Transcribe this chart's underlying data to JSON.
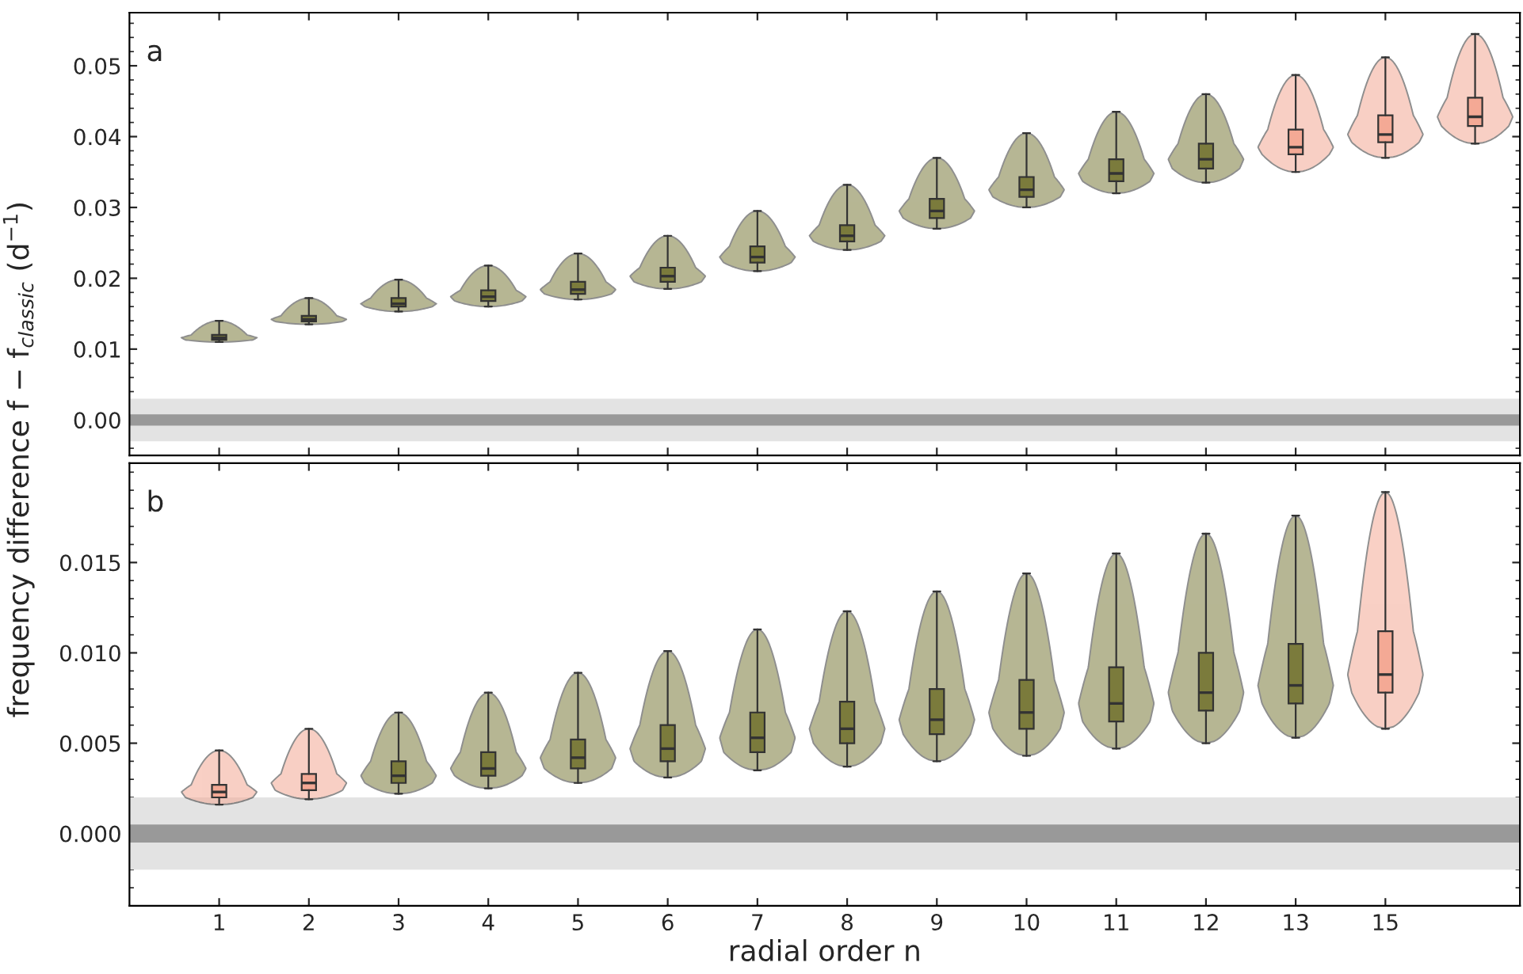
{
  "chart_data": [
    {
      "type": "box",
      "ylabel": "frequency difference f − f$_{classic}$ (d$^{−1}$)",
      "annotations": [
        "a"
      ],
      "categories": [
        "1",
        "2",
        "3",
        "4",
        "5",
        "6",
        "7",
        "8",
        "9",
        "10",
        "11",
        "12",
        "13",
        "15",
        null
      ],
      "colors": [
        "#7b7b3c",
        "#7b7b3c",
        "#7b7b3c",
        "#7b7b3c",
        "#7b7b3c",
        "#7b7b3c",
        "#7b7b3c",
        "#7b7b3c",
        "#7b7b3c",
        "#7b7b3c",
        "#7b7b3c",
        "#7b7b3c",
        "#f4a995",
        "#f4a995",
        "#f4a995"
      ],
      "boxes": [
        {
          "low": 0.011,
          "q1": 0.0113,
          "median": 0.0116,
          "q3": 0.012,
          "high": 0.014
        },
        {
          "low": 0.0135,
          "q1": 0.0139,
          "median": 0.0142,
          "q3": 0.0147,
          "high": 0.0172
        },
        {
          "low": 0.0153,
          "q1": 0.016,
          "median": 0.0164,
          "q3": 0.0172,
          "high": 0.0198
        },
        {
          "low": 0.016,
          "q1": 0.0168,
          "median": 0.0174,
          "q3": 0.0183,
          "high": 0.0218
        },
        {
          "low": 0.017,
          "q1": 0.0178,
          "median": 0.0184,
          "q3": 0.0195,
          "high": 0.0235
        },
        {
          "low": 0.0185,
          "q1": 0.0195,
          "median": 0.0203,
          "q3": 0.0215,
          "high": 0.026
        },
        {
          "low": 0.021,
          "q1": 0.0222,
          "median": 0.023,
          "q3": 0.0245,
          "high": 0.0295
        },
        {
          "low": 0.024,
          "q1": 0.0252,
          "median": 0.026,
          "q3": 0.0275,
          "high": 0.0332
        },
        {
          "low": 0.027,
          "q1": 0.0285,
          "median": 0.0295,
          "q3": 0.0312,
          "high": 0.037
        },
        {
          "low": 0.03,
          "q1": 0.0315,
          "median": 0.0325,
          "q3": 0.0343,
          "high": 0.0405
        },
        {
          "low": 0.032,
          "q1": 0.0337,
          "median": 0.0348,
          "q3": 0.0368,
          "high": 0.0435
        },
        {
          "low": 0.0335,
          "q1": 0.0355,
          "median": 0.0368,
          "q3": 0.039,
          "high": 0.046
        },
        {
          "low": 0.035,
          "q1": 0.0375,
          "median": 0.0385,
          "q3": 0.041,
          "high": 0.0487
        },
        {
          "low": 0.037,
          "q1": 0.0392,
          "median": 0.0403,
          "q3": 0.043,
          "high": 0.0512
        },
        {
          "low": 0.039,
          "q1": 0.0415,
          "median": 0.0428,
          "q3": 0.0455,
          "high": 0.0545
        }
      ],
      "ylim": [
        -0.005,
        0.0575
      ],
      "yticks": [
        {
          "value": 0,
          "label": "0.00"
        },
        {
          "value": 0.01,
          "label": "0.01"
        },
        {
          "value": 0.02,
          "label": "0.02"
        },
        {
          "value": 0.03,
          "label": "0.03"
        },
        {
          "value": 0.04,
          "label": "0.04"
        },
        {
          "value": 0.05,
          "label": "0.05"
        }
      ],
      "bands": [
        {
          "axis": "y",
          "from": -0.003,
          "to": 0.003,
          "color": "#e3e3e3"
        },
        {
          "axis": "y",
          "from": -0.0008,
          "to": 0.0008,
          "color": "#999999"
        }
      ],
      "tick_labels": "y"
    },
    {
      "type": "box",
      "xlabel": "radial order n",
      "annotations": [
        "b"
      ],
      "categories": [
        "1",
        "2",
        "3",
        "4",
        "5",
        "6",
        "7",
        "8",
        "9",
        "10",
        "11",
        "12",
        "13",
        "15",
        null
      ],
      "colors": [
        "#f4a995",
        "#f4a995",
        "#7b7b3c",
        "#7b7b3c",
        "#7b7b3c",
        "#7b7b3c",
        "#7b7b3c",
        "#7b7b3c",
        "#7b7b3c",
        "#7b7b3c",
        "#7b7b3c",
        "#7b7b3c",
        "#7b7b3c",
        "#f4a995",
        "#f4a995"
      ],
      "boxes": [
        {
          "low": 0.0016,
          "q1": 0.002,
          "median": 0.0023,
          "q3": 0.0027,
          "high": 0.0046
        },
        {
          "low": 0.0019,
          "q1": 0.0024,
          "median": 0.0028,
          "q3": 0.0033,
          "high": 0.0058
        },
        {
          "low": 0.0022,
          "q1": 0.0028,
          "median": 0.0032,
          "q3": 0.004,
          "high": 0.0067
        },
        {
          "low": 0.0025,
          "q1": 0.0032,
          "median": 0.0036,
          "q3": 0.0045,
          "high": 0.0078
        },
        {
          "low": 0.0028,
          "q1": 0.0036,
          "median": 0.0042,
          "q3": 0.0052,
          "high": 0.0089
        },
        {
          "low": 0.0031,
          "q1": 0.004,
          "median": 0.0047,
          "q3": 0.006,
          "high": 0.0101
        },
        {
          "low": 0.0035,
          "q1": 0.0045,
          "median": 0.0053,
          "q3": 0.0067,
          "high": 0.0113
        },
        {
          "low": 0.0037,
          "q1": 0.005,
          "median": 0.0058,
          "q3": 0.0073,
          "high": 0.0123
        },
        {
          "low": 0.004,
          "q1": 0.0055,
          "median": 0.0063,
          "q3": 0.008,
          "high": 0.0134
        },
        {
          "low": 0.0043,
          "q1": 0.0058,
          "median": 0.0067,
          "q3": 0.0085,
          "high": 0.0144
        },
        {
          "low": 0.0047,
          "q1": 0.0062,
          "median": 0.0072,
          "q3": 0.0092,
          "high": 0.0155
        },
        {
          "low": 0.005,
          "q1": 0.0068,
          "median": 0.0078,
          "q3": 0.01,
          "high": 0.0166
        },
        {
          "low": 0.0053,
          "q1": 0.0072,
          "median": 0.0082,
          "q3": 0.0105,
          "high": 0.0176
        },
        {
          "low": 0.0058,
          "q1": 0.0078,
          "median": 0.0088,
          "q3": 0.0112,
          "high": 0.0189
        },
        null
      ],
      "ylim": [
        -0.004,
        0.0205
      ],
      "yticks": [
        {
          "value": 0,
          "label": "0.000"
        },
        {
          "value": 0.005,
          "label": "0.005"
        },
        {
          "value": 0.01,
          "label": "0.010"
        },
        {
          "value": 0.015,
          "label": "0.015"
        }
      ],
      "bands": [
        {
          "axis": "y",
          "from": -0.002,
          "to": 0.002,
          "color": "#e3e3e3"
        },
        {
          "axis": "y",
          "from": -0.0005,
          "to": 0.0005,
          "color": "#999999"
        }
      ]
    }
  ]
}
